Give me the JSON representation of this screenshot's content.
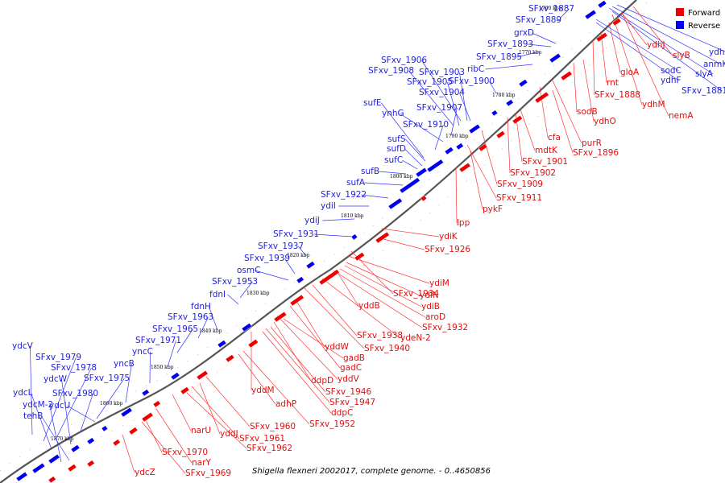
{
  "caption": "Shigella flexneri 2002017, complete genome. - 0..4650856",
  "legend": [
    {
      "label": "Forward",
      "color": "#ee0000"
    },
    {
      "label": "Reverse",
      "color": "#0000ee"
    }
  ],
  "colors": {
    "forward": "#ee0000",
    "reverse": "#0000ee",
    "forward_label": "#dd1111",
    "reverse_label": "#2222dd",
    "backbone": "#555555"
  },
  "ticks": [
    "1760 kbp",
    "1770 kbp",
    "1780 kbp",
    "1790 kbp",
    "1800 kbp",
    "1810 kbp",
    "1820 kbp",
    "1830 kbp",
    "1840 kbp",
    "1850 kbp",
    "1860 kbp",
    "1870 kbp"
  ],
  "reverse_genes": [
    "SFxv_1887",
    "SFxv_1889",
    "grxD",
    "SFxv_1893",
    "SFxv_1895",
    "ribC",
    "SFxv_1906",
    "SFxv_1908",
    "SFxv_1903",
    "SFxv_1905",
    "SFxv_1900",
    "SFxv_1904",
    "sufE",
    "SFxv_1907",
    "ynhG",
    "SFxv_1910",
    "sufS",
    "sufD",
    "sufC",
    "sufB",
    "sufA",
    "SFxv_1922",
    "ydiI",
    "ydiJ",
    "SFxv_1931",
    "SFxv_1937",
    "SFxv_1939",
    "osmC",
    "SFxv_1953",
    "fdnI",
    "fdnH",
    "SFxv_1963",
    "SFxv_1965",
    "SFxv_1971",
    "yncC",
    "yncB",
    "ydcV",
    "SFxv_1979",
    "SFxv_1978",
    "ydcW",
    "SFxv_1975",
    "ydcL",
    "SFxv_1980",
    "ydcM-2",
    "ydcU",
    "tehB",
    "ydhA",
    "anmK",
    "sodC",
    "slyA",
    "ydhF",
    "SFxv_1881"
  ],
  "forward_genes": [
    "slyB",
    "ydhJ",
    "gloA",
    "rnt",
    "SFxv_1888",
    "ydhM",
    "nemA",
    "sodB",
    "ydhO",
    "purR",
    "cfa",
    "SFxv_1896",
    "mdtK",
    "SFxv_1901",
    "SFxv_1902",
    "SFxv_1909",
    "SFxv_1911",
    "pykF",
    "lpp",
    "ydiK",
    "SFxv_1926",
    "ydiM",
    "ydiN",
    "SFxv_1934",
    "yddB",
    "ydiB",
    "aroD",
    "SFxv_1932",
    "ydeN-2",
    "SFxv_1938",
    "SFxv_1940",
    "gadB",
    "gadC",
    "yddV",
    "yddW",
    "ddpD",
    "yddM",
    "SFxv_1946",
    "SFxv_1947",
    "adhP",
    "ddpC",
    "SFxv_1952",
    "SFxv_1960",
    "narU",
    "yddJ",
    "SFxv_1961",
    "SFxv_1962",
    "SFxv_1970",
    "narY",
    "ydcZ",
    "SFxv_1969"
  ]
}
